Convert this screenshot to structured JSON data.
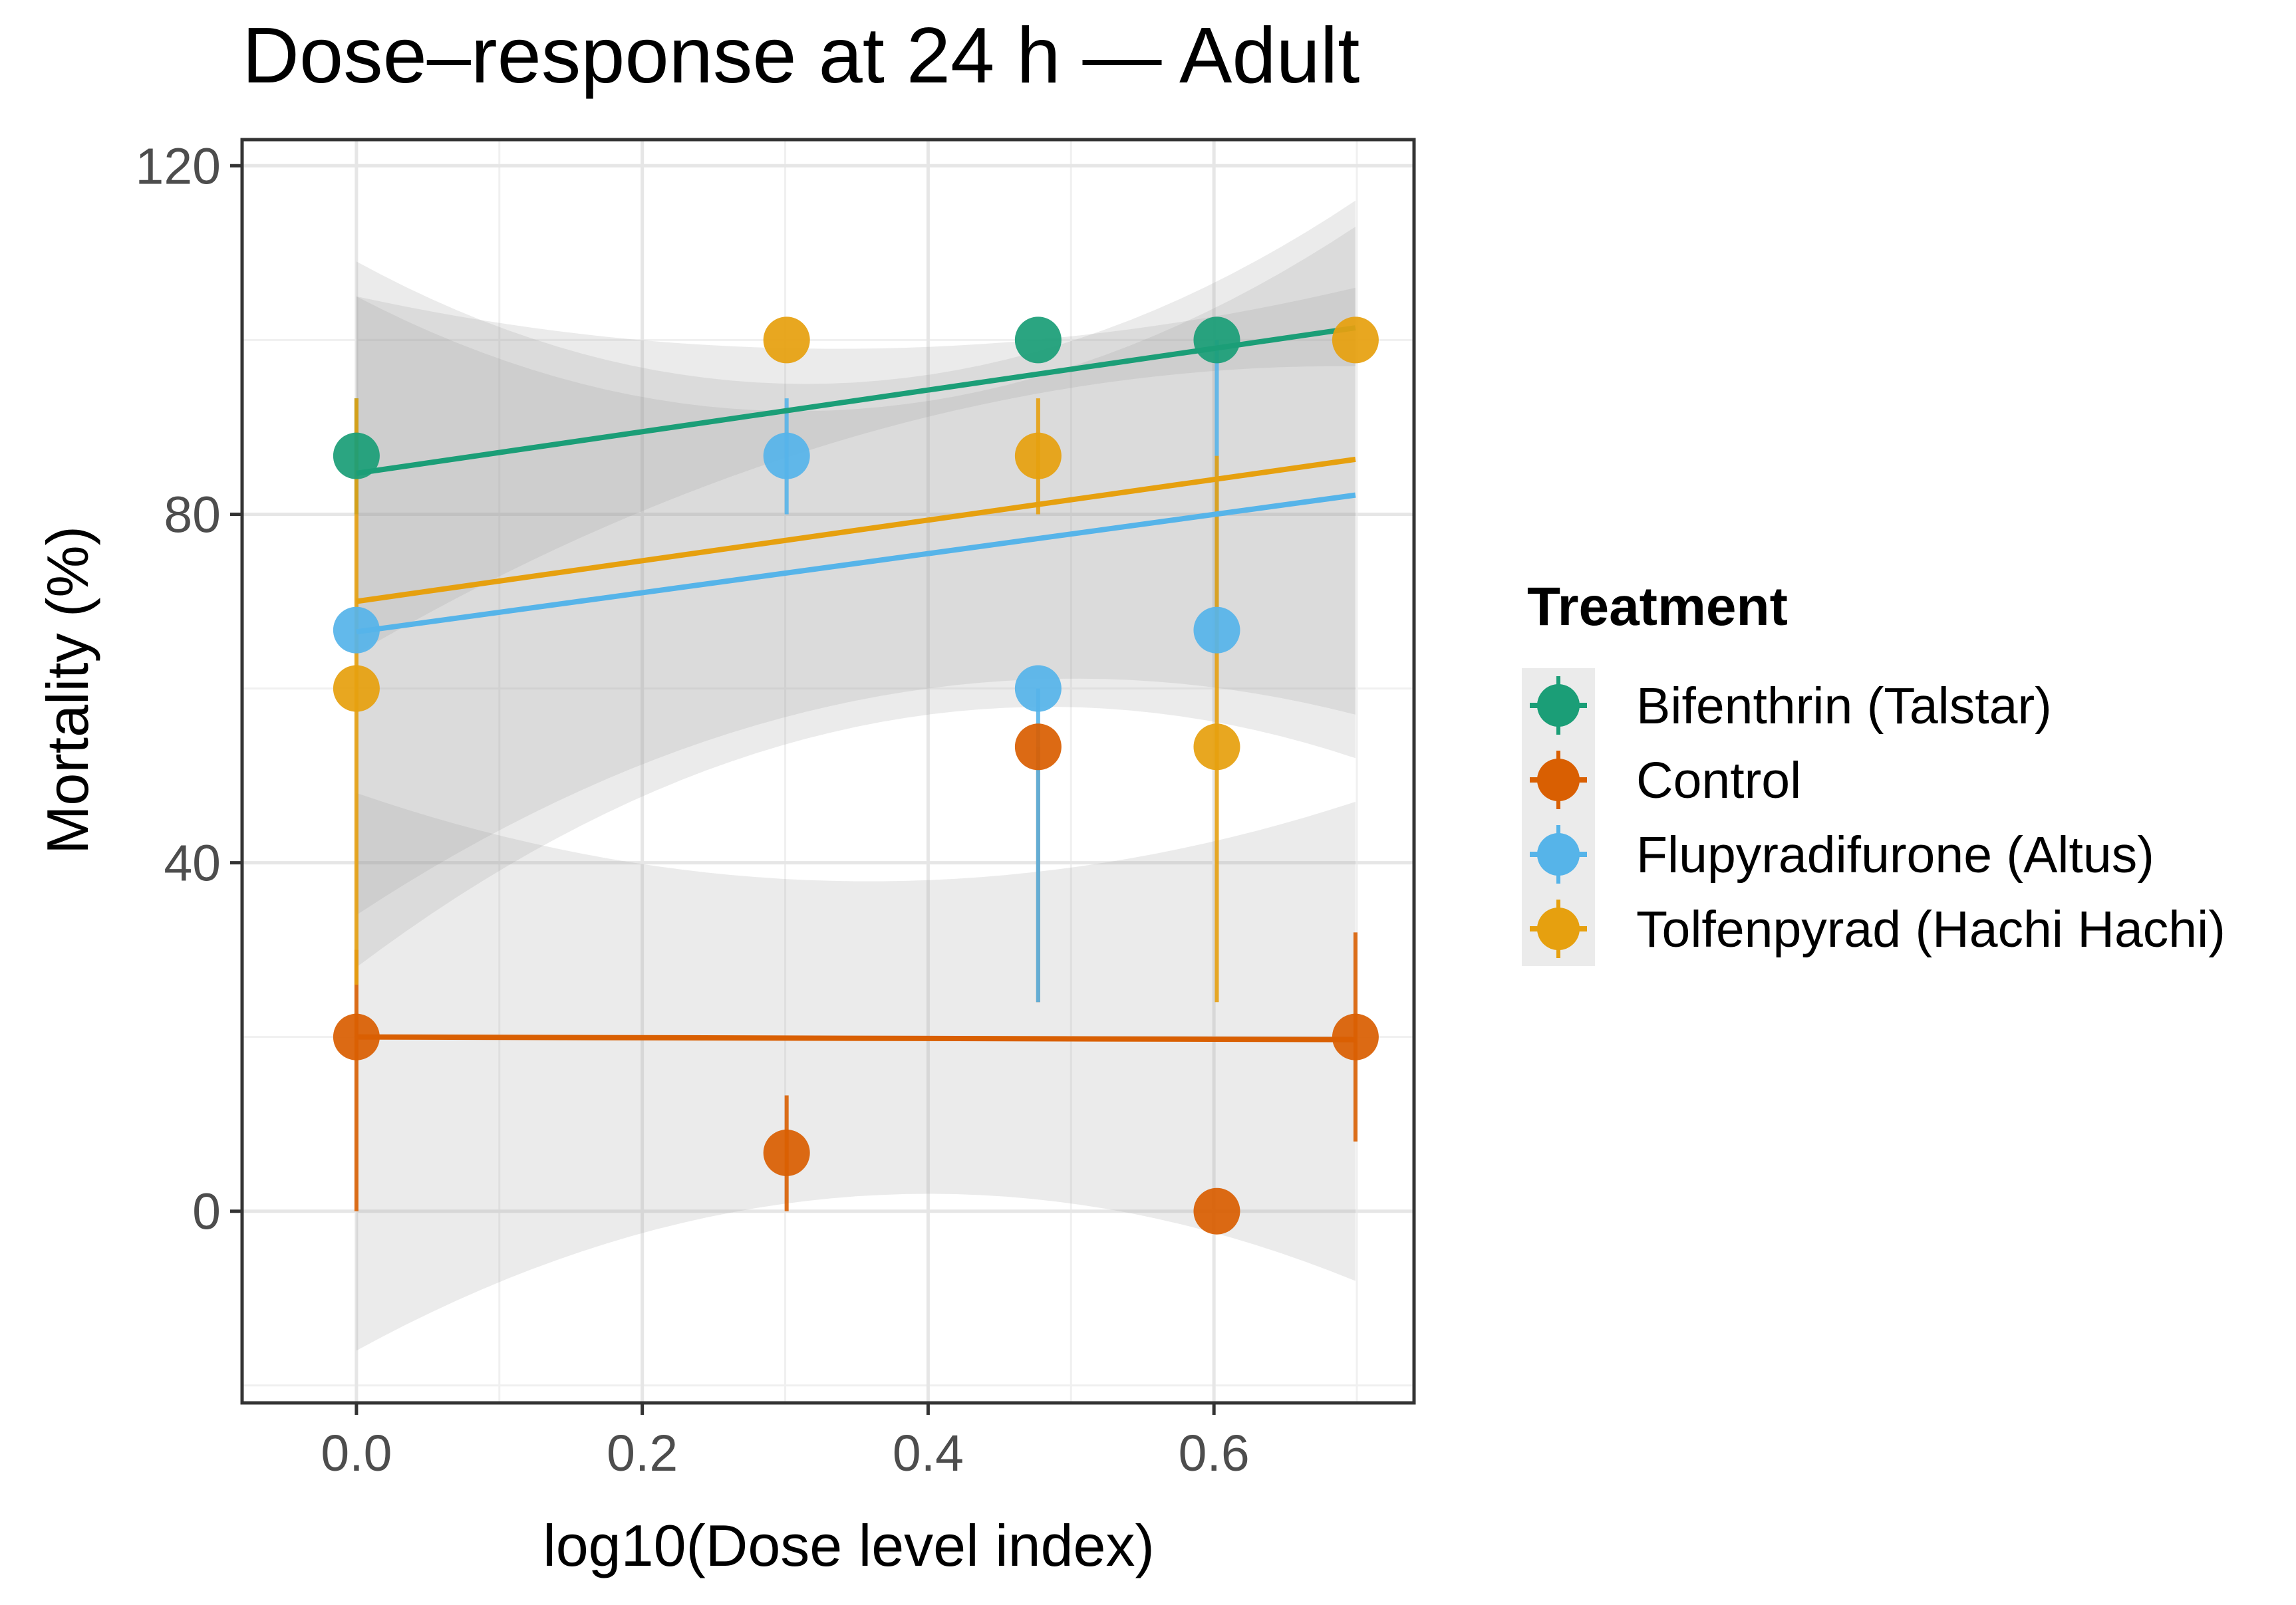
{
  "chart_data": {
    "type": "scatter",
    "title": "Dose–response at 24 h — Adult",
    "xlabel": "log10(Dose level index)",
    "ylabel": "Mortality (%)",
    "xlim": [
      -0.08,
      0.74
    ],
    "ylim": [
      -22,
      123
    ],
    "x_ticks": [
      0.0,
      0.2,
      0.4,
      0.6
    ],
    "x_tick_labels": [
      "0.0",
      "0.2",
      "0.4",
      "0.6"
    ],
    "y_ticks": [
      0,
      40,
      80,
      120
    ],
    "y_tick_labels": [
      "0",
      "40",
      "80",
      "120"
    ],
    "grid": true,
    "legend": {
      "title": "Treatment",
      "position": "right"
    },
    "series": [
      {
        "name": "Bifenthrin (Talstar)",
        "color": "#1b9e77",
        "points": [
          {
            "x": 0.0,
            "y": 86.7,
            "lo": 80,
            "hi": 93.3
          },
          {
            "x": 0.477,
            "y": 100,
            "lo": 100,
            "hi": 100
          },
          {
            "x": 0.602,
            "y": 100,
            "lo": 100,
            "hi": 100
          }
        ],
        "fit": {
          "x": [
            0.0,
            0.699
          ],
          "y": [
            84.7,
            101.4
          ]
        },
        "band": {
          "x": [
            0.0,
            0.35,
            0.699
          ],
          "lo": [
            64,
            89,
            97
          ],
          "hi": [
            105,
            99,
            106
          ]
        }
      },
      {
        "name": "Control",
        "color": "#d95f02",
        "points": [
          {
            "x": 0.0,
            "y": 20,
            "lo": 0,
            "hi": 30
          },
          {
            "x": 0.301,
            "y": 6.7,
            "lo": 0,
            "hi": 13.3
          },
          {
            "x": 0.477,
            "y": 53.3,
            "lo": 24,
            "hi": 53.3
          },
          {
            "x": 0.602,
            "y": 0,
            "lo": 0,
            "hi": 0
          },
          {
            "x": 0.699,
            "y": 20,
            "lo": 8,
            "hi": 32
          }
        ],
        "fit": {
          "x": [
            0.0,
            0.699
          ],
          "y": [
            20,
            19.7
          ]
        },
        "band": {
          "x": [
            0.0,
            0.4,
            0.699
          ],
          "lo": [
            -16,
            2,
            -8
          ],
          "hi": [
            48,
            38,
            47
          ]
        }
      },
      {
        "name": "Flupyradifurone (Altus)",
        "color": "#56b4e9",
        "points": [
          {
            "x": 0.0,
            "y": 66.7,
            "lo": 66.7,
            "hi": 66.7
          },
          {
            "x": 0.301,
            "y": 86.7,
            "lo": 80,
            "hi": 93.3
          },
          {
            "x": 0.477,
            "y": 60,
            "lo": 24,
            "hi": 60
          },
          {
            "x": 0.602,
            "y": 66.7,
            "lo": 66.7,
            "hi": 100
          }
        ],
        "fit": {
          "x": [
            0.0,
            0.699
          ],
          "y": [
            66.5,
            82.2
          ]
        },
        "band": {
          "x": [
            0.0,
            0.4,
            0.699
          ],
          "lo": [
            28,
            57,
            52
          ],
          "hi": [
            105,
            93,
            113
          ]
        }
      },
      {
        "name": "Tolfenpyrad (Hachi Hachi)",
        "color": "#e6a00f",
        "points": [
          {
            "x": 0.0,
            "y": 60,
            "lo": 26,
            "hi": 93.3
          },
          {
            "x": 0.301,
            "y": 100,
            "lo": 100,
            "hi": 100
          },
          {
            "x": 0.477,
            "y": 86.7,
            "lo": 80,
            "hi": 93.3
          },
          {
            "x": 0.602,
            "y": 53.3,
            "lo": 24,
            "hi": 86.7
          },
          {
            "x": 0.699,
            "y": 100,
            "lo": 100,
            "hi": 100
          }
        ],
        "fit": {
          "x": [
            0.0,
            0.699
          ],
          "y": [
            70,
            86.3
          ]
        },
        "band": {
          "x": [
            0.0,
            0.4,
            0.699
          ],
          "lo": [
            34,
            60,
            57
          ],
          "hi": [
            109,
            96,
            116
          ]
        }
      }
    ]
  }
}
